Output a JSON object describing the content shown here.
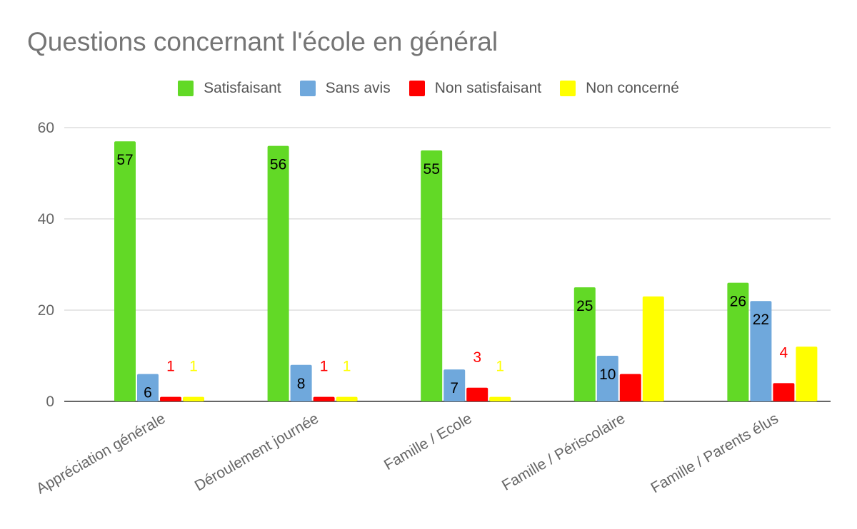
{
  "chart_data": {
    "type": "bar",
    "title": "Questions concernant l'école en général",
    "categories": [
      "Appréciation générale",
      "Déroulement journée",
      "Famille / Ecole",
      "Famille / Périscolaire",
      "Famille / Parents élus"
    ],
    "series": [
      {
        "name": "Satisfaisant",
        "values": [
          57,
          56,
          55,
          25,
          26
        ],
        "color": "#62d926",
        "label_color": "#000000"
      },
      {
        "name": "Sans avis",
        "values": [
          6,
          8,
          7,
          10,
          22
        ],
        "color": "#6fa8dc",
        "label_color": "#000000"
      },
      {
        "name": "Non satisfaisant",
        "values": [
          1,
          1,
          3,
          6,
          4
        ],
        "color": "#ff0000",
        "label_color": "#ff0000"
      },
      {
        "name": "Non concerné",
        "values": [
          1,
          1,
          1,
          23,
          12
        ],
        "color": "#ffff00",
        "label_color": "#ffff00"
      }
    ],
    "ylim": [
      0,
      60
    ],
    "yticks": [
      0,
      20,
      40,
      60
    ],
    "grid": true,
    "legend": "top-center",
    "xlabel": "",
    "ylabel": ""
  }
}
